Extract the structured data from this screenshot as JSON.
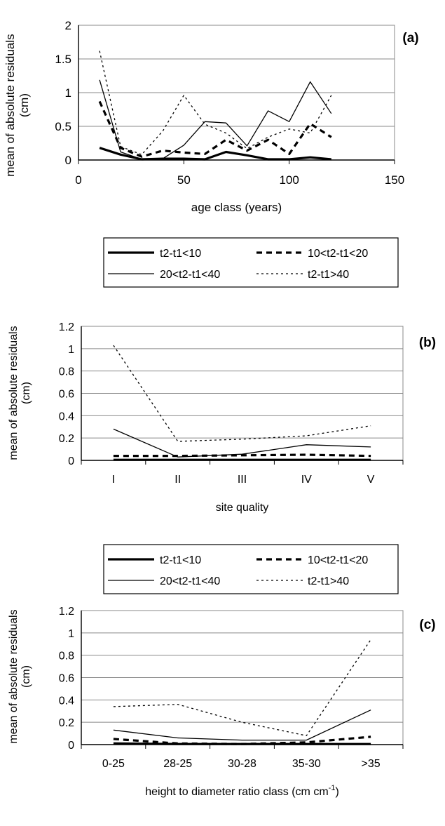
{
  "chart_data": [
    {
      "type": "line",
      "panel_label": "(a)",
      "xlabel": "age class (years)",
      "ylabel": [
        "mean of absolute residuals",
        "(cm)"
      ],
      "xlim": [
        0,
        150
      ],
      "ylim": [
        0,
        2
      ],
      "x_ticks": [
        0,
        50,
        100,
        150
      ],
      "y_ticks": [
        0,
        0.5,
        1,
        1.5,
        2
      ],
      "y_tick_labels": [
        "0",
        "0.5",
        "1",
        "1.5",
        "2"
      ],
      "grid": true,
      "x": [
        10,
        20,
        30,
        40,
        50,
        60,
        70,
        80,
        90,
        100,
        110,
        120
      ],
      "series": [
        {
          "name": "t2-t1<10",
          "values": [
            0.18,
            0.08,
            0.01,
            0.02,
            0.02,
            0.01,
            0.12,
            0.07,
            0.01,
            0.01,
            0.04,
            0.01
          ]
        },
        {
          "name": "10<t2-t1<20",
          "values": [
            0.87,
            0.18,
            0.05,
            0.14,
            0.11,
            0.09,
            0.3,
            0.14,
            0.3,
            0.09,
            0.54,
            0.34
          ]
        },
        {
          "name": "20<t2-t1<40",
          "values": [
            1.19,
            0.12,
            0.01,
            0.02,
            0.22,
            0.57,
            0.55,
            0.21,
            0.73,
            0.57,
            1.16,
            0.69
          ]
        },
        {
          "name": "t2-t1>40",
          "values": [
            1.62,
            0.2,
            0.08,
            0.43,
            0.96,
            0.53,
            0.4,
            0.17,
            0.34,
            0.46,
            0.4,
            0.96
          ]
        }
      ]
    },
    {
      "type": "line",
      "panel_label": "(b)",
      "xlabel": "site quality",
      "ylabel": [
        "mean of absolute residuals",
        "(cm)"
      ],
      "categories": [
        "I",
        "II",
        "III",
        "IV",
        "V"
      ],
      "ylim": [
        0,
        1.2
      ],
      "y_ticks": [
        0,
        0.2,
        0.4,
        0.6,
        0.8,
        1,
        1.2
      ],
      "y_tick_labels": [
        "0",
        "0.2",
        "0.4",
        "0.6",
        "0.8",
        "1",
        "1.2"
      ],
      "grid": true,
      "series": [
        {
          "name": "t2-t1<10",
          "values": [
            0.005,
            0.005,
            0.005,
            0.005,
            0.005
          ]
        },
        {
          "name": "10<t2-t1<20",
          "values": [
            0.04,
            0.04,
            0.045,
            0.05,
            0.04
          ]
        },
        {
          "name": "20<t2-t1<40",
          "values": [
            0.28,
            0.03,
            0.055,
            0.14,
            0.12
          ]
        },
        {
          "name": "t2-t1>40",
          "values": [
            1.03,
            0.17,
            0.19,
            0.22,
            0.31
          ]
        }
      ]
    },
    {
      "type": "line",
      "panel_label": "(c)",
      "xlabel": "height to diameter ratio class  (cm cm",
      "xlabel_sup": "-1",
      "xlabel_end": ")",
      "ylabel": [
        "mean of absolute residuals",
        "(cm)"
      ],
      "categories": [
        "0-25",
        "28-25",
        "30-28",
        "35-30",
        ">35"
      ],
      "ylim": [
        0,
        1.2
      ],
      "y_ticks": [
        0,
        0.2,
        0.4,
        0.6,
        0.8,
        1,
        1.2
      ],
      "y_tick_labels": [
        "0",
        "0.2",
        "0.4",
        "0.6",
        "0.8",
        "1",
        "1.2"
      ],
      "grid": true,
      "series": [
        {
          "name": "t2-t1<10",
          "values": [
            0.01,
            0.005,
            0.005,
            0.005,
            0.005
          ]
        },
        {
          "name": "10<t2-t1<20",
          "values": [
            0.05,
            0.01,
            0.005,
            0.02,
            0.07
          ]
        },
        {
          "name": "20<t2-t1<40",
          "values": [
            0.13,
            0.06,
            0.04,
            0.04,
            0.31
          ]
        },
        {
          "name": "t2-t1>40",
          "values": [
            0.34,
            0.36,
            0.2,
            0.08,
            0.94
          ]
        }
      ]
    }
  ],
  "legend": {
    "entries": [
      "t2-t1<10",
      "10<t2-t1<20",
      "20<t2-t1<40",
      "t2-t1>40"
    ]
  }
}
